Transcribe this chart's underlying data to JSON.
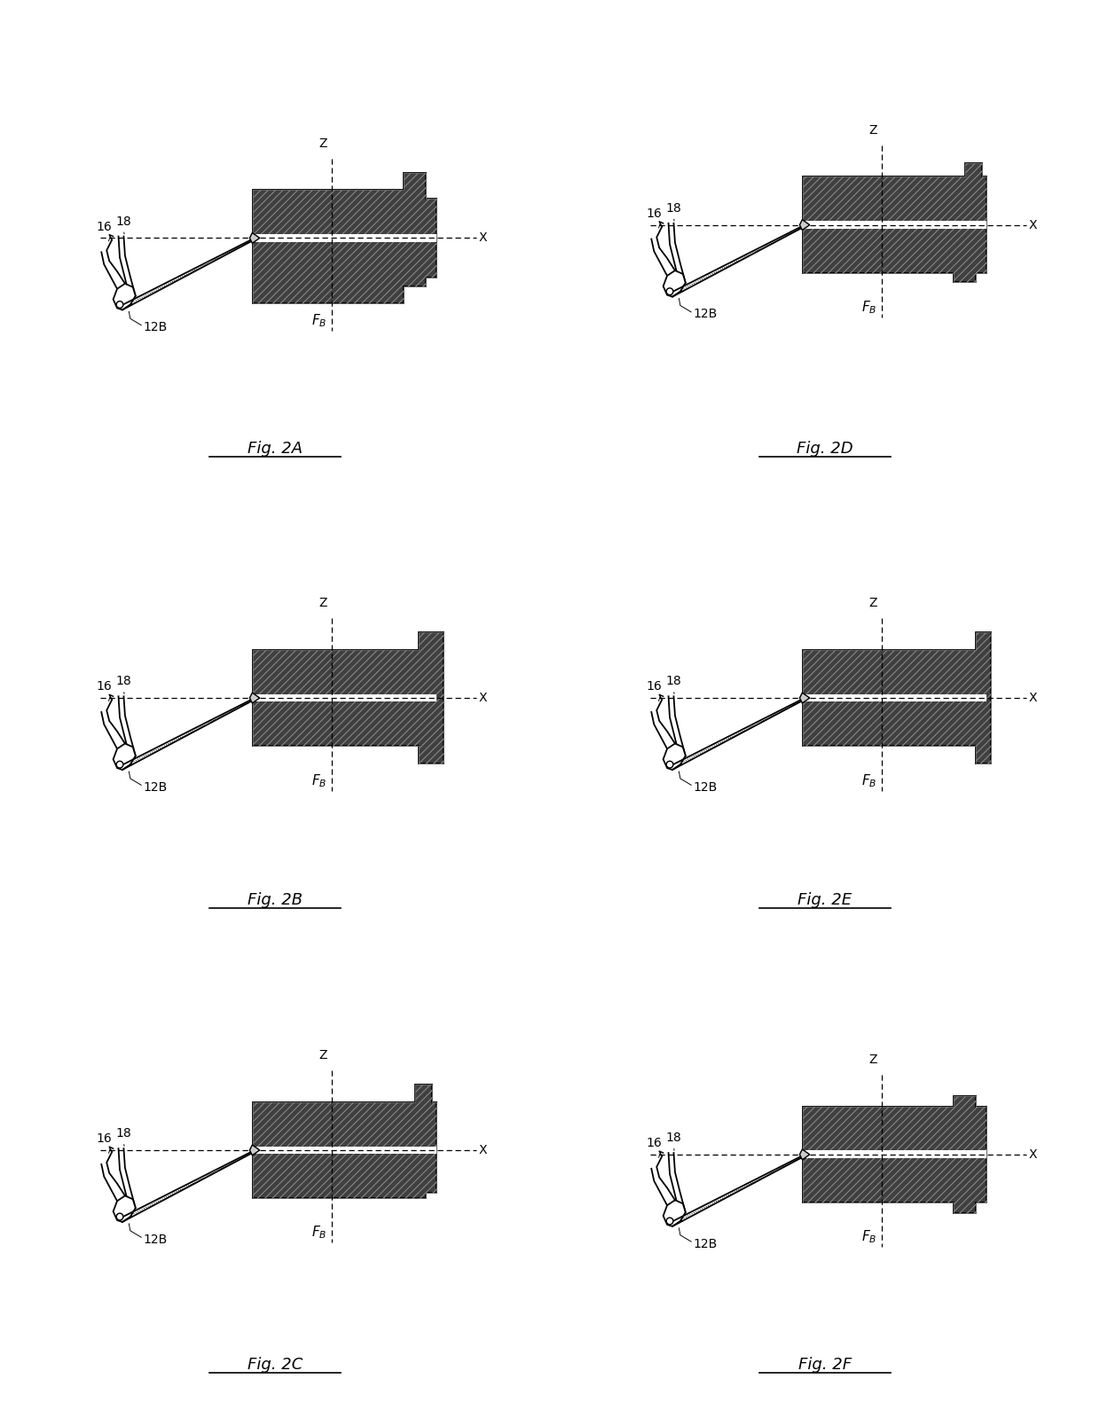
{
  "bg_color": "#ffffff",
  "fig_labels": [
    "Fig. 2A",
    "Fig. 2D",
    "Fig. 2B",
    "Fig. 2E",
    "Fig. 2C",
    "Fig. 2F"
  ],
  "label_16": "16",
  "label_18": "18",
  "label_Z": "Z",
  "label_X": "X",
  "label_FB": "F",
  "label_FB_sub": "B",
  "label_12B": "12B",
  "gear_dark": "#404040",
  "gear_light": "#888888",
  "line_color": "#000000",
  "lw": 1.3,
  "fig_label_fontsize": 13,
  "anno_fontsize": 10
}
